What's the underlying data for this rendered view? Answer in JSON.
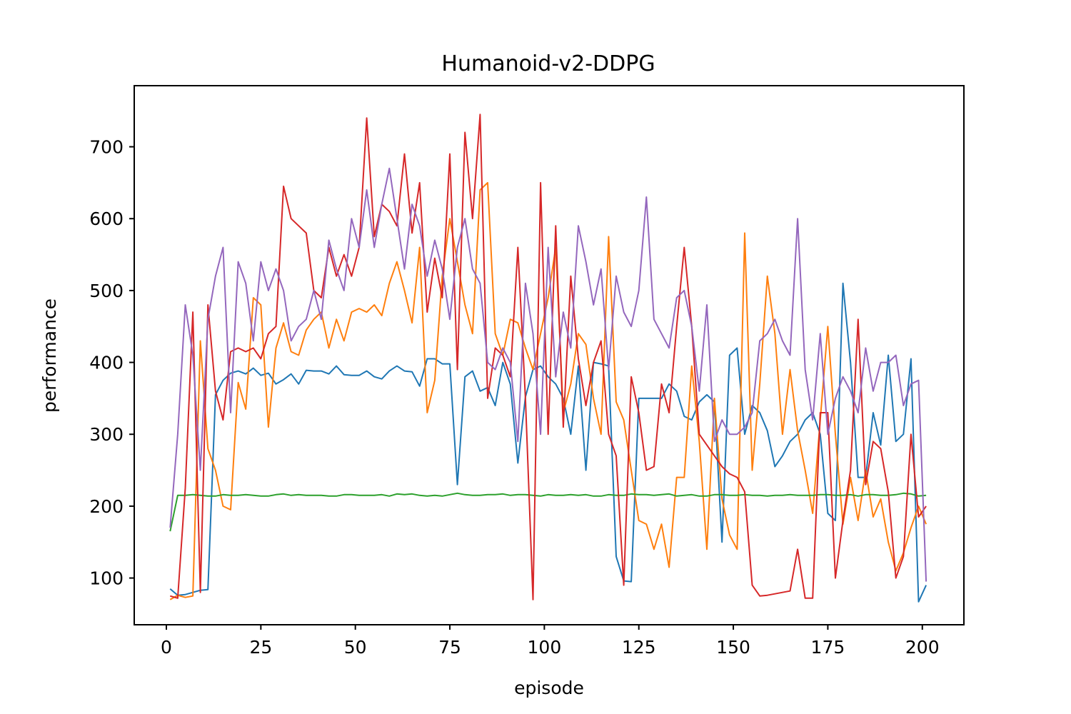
{
  "chart_data": {
    "type": "line",
    "title": "Humanoid-v2-DDPG",
    "xlabel": "episode",
    "ylabel": "performance",
    "xlim": [
      -8.5,
      211
    ],
    "ylim": [
      35,
      785
    ],
    "xticks": [
      0,
      25,
      50,
      75,
      100,
      125,
      150,
      175,
      200
    ],
    "yticks": [
      100,
      200,
      300,
      400,
      500,
      600,
      700
    ],
    "x_start": 1,
    "x_step": 2,
    "legend": "none",
    "grid": false,
    "series": [
      {
        "color": "#1f77b4",
        "values": [
          85,
          76,
          77,
          80,
          83,
          84,
          355,
          375,
          385,
          388,
          384,
          392,
          382,
          385,
          370,
          376,
          384,
          370,
          389,
          388,
          388,
          384,
          395,
          383,
          382,
          382,
          388,
          380,
          377,
          388,
          395,
          388,
          387,
          367,
          405,
          405,
          398,
          398,
          230,
          380,
          388,
          360,
          365,
          340,
          400,
          370,
          260,
          352,
          390,
          395,
          380,
          370,
          350,
          300,
          395,
          250,
          400,
          398,
          395,
          130,
          96,
          95,
          350,
          350,
          350,
          350,
          370,
          360,
          325,
          320,
          345,
          355,
          345,
          150,
          410,
          420,
          300,
          340,
          330,
          305,
          255,
          270,
          290,
          300,
          320,
          330,
          300,
          190,
          180,
          510,
          400,
          240,
          240,
          330,
          285,
          410,
          290,
          300,
          405,
          67,
          90
        ]
      },
      {
        "color": "#ff7f0e",
        "values": [
          70,
          76,
          73,
          75,
          430,
          280,
          250,
          200,
          195,
          372,
          335,
          490,
          480,
          310,
          420,
          455,
          415,
          410,
          445,
          460,
          470,
          420,
          460,
          430,
          470,
          475,
          470,
          480,
          465,
          510,
          540,
          500,
          455,
          560,
          330,
          375,
          520,
          600,
          540,
          480,
          440,
          640,
          650,
          440,
          410,
          460,
          455,
          420,
          390,
          440,
          490,
          560,
          330,
          370,
          440,
          425,
          350,
          300,
          575,
          345,
          320,
          250,
          180,
          175,
          140,
          175,
          115,
          240,
          240,
          395,
          290,
          140,
          350,
          210,
          160,
          140,
          580,
          250,
          370,
          520,
          440,
          300,
          390,
          305,
          250,
          190,
          320,
          450,
          300,
          175,
          240,
          180,
          250,
          185,
          210,
          150,
          110,
          135,
          170,
          200,
          175
        ]
      },
      {
        "color": "#2ca02c",
        "values": [
          165,
          215,
          215,
          216,
          215,
          214,
          214,
          216,
          215,
          215,
          216,
          215,
          214,
          214,
          216,
          217,
          215,
          216,
          215,
          215,
          215,
          214,
          214,
          216,
          216,
          215,
          215,
          215,
          216,
          214,
          217,
          216,
          217,
          215,
          214,
          215,
          214,
          216,
          218,
          216,
          215,
          215,
          216,
          216,
          217,
          215,
          216,
          216,
          215,
          214,
          216,
          215,
          215,
          216,
          215,
          216,
          214,
          214,
          216,
          215,
          215,
          217,
          216,
          216,
          215,
          216,
          217,
          214,
          215,
          216,
          214,
          214,
          216,
          216,
          215,
          215,
          216,
          215,
          215,
          214,
          215,
          215,
          216,
          215,
          215,
          215,
          216,
          216,
          215,
          215,
          216,
          214,
          216,
          216,
          215,
          215,
          216,
          218,
          217,
          214,
          215
        ]
      },
      {
        "color": "#d62728",
        "values": [
          75,
          72,
          225,
          470,
          80,
          480,
          360,
          320,
          415,
          420,
          415,
          420,
          405,
          440,
          450,
          645,
          600,
          590,
          580,
          500,
          490,
          560,
          520,
          550,
          520,
          560,
          740,
          575,
          620,
          610,
          590,
          690,
          580,
          650,
          470,
          545,
          490,
          690,
          390,
          720,
          600,
          745,
          350,
          420,
          410,
          380,
          560,
          350,
          70,
          650,
          300,
          590,
          310,
          520,
          405,
          340,
          400,
          430,
          300,
          270,
          90,
          380,
          330,
          250,
          255,
          370,
          330,
          450,
          560,
          450,
          300,
          285,
          270,
          255,
          245,
          240,
          220,
          90,
          75,
          76,
          78,
          80,
          82,
          140,
          72,
          72,
          330,
          330,
          100,
          180,
          250,
          460,
          230,
          290,
          280,
          220,
          100,
          130,
          300,
          185,
          200
        ]
      },
      {
        "color": "#9467bd",
        "values": [
          170,
          300,
          480,
          410,
          250,
          460,
          520,
          560,
          330,
          540,
          510,
          430,
          540,
          500,
          530,
          500,
          430,
          450,
          460,
          500,
          460,
          570,
          530,
          500,
          600,
          560,
          640,
          560,
          620,
          670,
          600,
          530,
          620,
          590,
          520,
          570,
          530,
          460,
          560,
          600,
          530,
          510,
          400,
          390,
          420,
          400,
          290,
          510,
          440,
          300,
          560,
          380,
          470,
          420,
          590,
          540,
          480,
          530,
          390,
          520,
          470,
          450,
          500,
          630,
          460,
          440,
          420,
          490,
          500,
          450,
          360,
          480,
          290,
          320,
          300,
          300,
          310,
          330,
          430,
          440,
          460,
          430,
          410,
          600,
          390,
          320,
          440,
          300,
          350,
          380,
          360,
          330,
          420,
          360,
          400,
          400,
          410,
          340,
          370,
          375,
          95
        ]
      }
    ]
  }
}
